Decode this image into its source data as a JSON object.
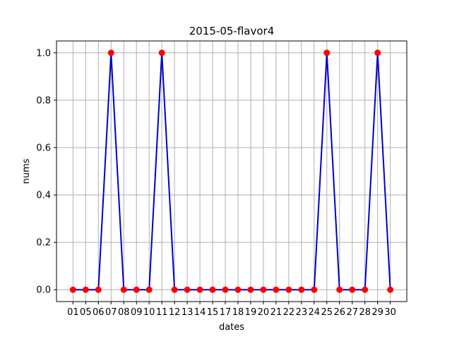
{
  "chart_data": {
    "type": "line",
    "title": "2015-05-flavor4",
    "xlabel": "dates",
    "ylabel": "nums",
    "categories": [
      "01",
      "05",
      "06",
      "07",
      "08",
      "09",
      "10",
      "11",
      "12",
      "13",
      "14",
      "15",
      "17",
      "18",
      "19",
      "20",
      "21",
      "22",
      "23",
      "24",
      "25",
      "26",
      "27",
      "28",
      "29",
      "30"
    ],
    "series": [
      {
        "values": [
          0,
          0,
          0,
          1,
          0,
          0,
          0,
          1,
          0,
          0,
          0,
          0,
          0,
          0,
          0,
          0,
          0,
          0,
          0,
          0,
          1,
          0,
          0,
          0,
          1,
          0
        ],
        "line_color": "#0000cc",
        "marker_color": "#ff0000"
      }
    ],
    "ylim": [
      -0.05,
      1.05
    ],
    "yticks": [
      0.0,
      0.2,
      0.4,
      0.6,
      0.8,
      1.0
    ],
    "ytick_labels": [
      "0.0",
      "0.2",
      "0.4",
      "0.6",
      "0.8",
      "1.0"
    ],
    "grid": true
  }
}
